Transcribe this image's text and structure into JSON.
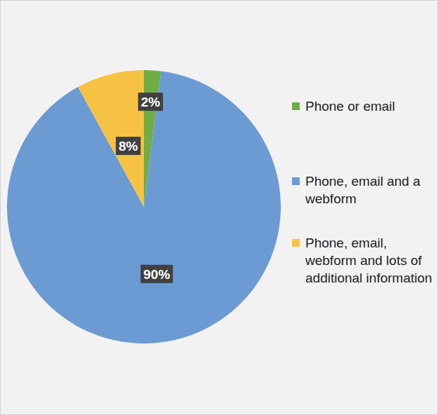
{
  "chart_data": {
    "type": "pie",
    "categories": [
      "Phone or email",
      "Phone, email and a webform",
      "Phone, email, webform and lots of additional information"
    ],
    "values": [
      2,
      90,
      8
    ],
    "value_labels": [
      "2%",
      "90%",
      "8%"
    ],
    "colors": [
      "#70ad47",
      "#6b9bd2",
      "#f6c244"
    ],
    "data_labels": true,
    "legend": "right"
  }
}
